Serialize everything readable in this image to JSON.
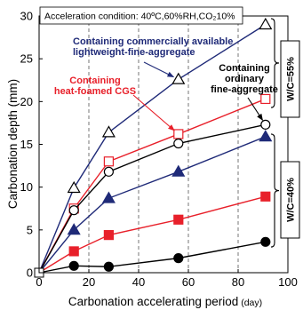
{
  "chart_data": {
    "type": "line",
    "title": "",
    "condition_label": "Acceleration condition: 40ºC,60%RH,CO₂10%",
    "xlabel": "Carbonation accelerating period",
    "xlabel_unit": "(day)",
    "ylabel": "Carbonation depth (mm)",
    "xlim": [
      0,
      100
    ],
    "ylim": [
      0,
      30
    ],
    "x_ticks": [
      0,
      20,
      40,
      60,
      80,
      100
    ],
    "y_ticks": [
      0,
      5,
      10,
      15,
      20,
      25,
      30
    ],
    "grid": "vertical dashed at x=20, 40, 60, 80",
    "series": [
      {
        "name": "W/C=55% lightweight",
        "group": "W/C=55%",
        "marker": "triangle-open",
        "color": "#000000",
        "line_color": "#1f2a78",
        "points": [
          [
            0,
            0
          ],
          [
            14,
            9.9
          ],
          [
            28,
            16.4
          ],
          [
            56,
            22.6
          ],
          [
            91,
            29.0
          ]
        ]
      },
      {
        "name": "W/C=55% heat-foamed",
        "group": "W/C=55%",
        "marker": "square-open",
        "color": "#e8202a",
        "line_color": "#e8202a",
        "points": [
          [
            0,
            0
          ],
          [
            14,
            7.5
          ],
          [
            28,
            13.0
          ],
          [
            56,
            16.2
          ],
          [
            91,
            20.3
          ]
        ]
      },
      {
        "name": "W/C=55% ordinary",
        "group": "W/C=55%",
        "marker": "circle-open",
        "color": "#000000",
        "line_color": "#000000",
        "points": [
          [
            0,
            0
          ],
          [
            14,
            7.3
          ],
          [
            28,
            11.8
          ],
          [
            56,
            15.1
          ],
          [
            91,
            17.3
          ]
        ]
      },
      {
        "name": "W/C=40% lightweight",
        "group": "W/C=40%",
        "marker": "triangle-filled",
        "color": "#1f2a78",
        "line_color": "#1f2a78",
        "points": [
          [
            0,
            0
          ],
          [
            14,
            5.0
          ],
          [
            28,
            8.7
          ],
          [
            56,
            11.8
          ],
          [
            91,
            15.9
          ]
        ]
      },
      {
        "name": "W/C=40% heat-foamed",
        "group": "W/C=40%",
        "marker": "square-filled",
        "color": "#e8202a",
        "line_color": "#e8202a",
        "points": [
          [
            0,
            0
          ],
          [
            14,
            2.5
          ],
          [
            28,
            4.4
          ],
          [
            56,
            6.2
          ],
          [
            91,
            8.9
          ]
        ]
      },
      {
        "name": "W/C=40% ordinary",
        "group": "W/C=40%",
        "marker": "circle-filled",
        "color": "#000000",
        "line_color": "#000000",
        "points": [
          [
            0,
            0
          ],
          [
            14,
            0.8
          ],
          [
            28,
            0.7
          ],
          [
            56,
            1.7
          ],
          [
            91,
            3.6
          ]
        ]
      }
    ],
    "annotations": [
      {
        "lines": [
          "Containing commercially available",
          "lightweight-fine-aggregate"
        ],
        "color": "#1f2a78",
        "arrow_to": [
          56,
          22.6
        ]
      },
      {
        "lines": [
          "Containing",
          "heat-foamed CGS"
        ],
        "color": "#e8202a",
        "arrow_to": [
          56,
          16.2
        ]
      },
      {
        "lines": [
          "Containing",
          "ordinary",
          "fine-aggregate"
        ],
        "color": "#000000",
        "arrow_to": [
          91,
          17.3
        ]
      }
    ],
    "group_labels": [
      "W/C=55%",
      "W/C=40%"
    ],
    "colors": {
      "navy": "#1f2a78",
      "red": "#e8202a",
      "black": "#000000"
    }
  }
}
